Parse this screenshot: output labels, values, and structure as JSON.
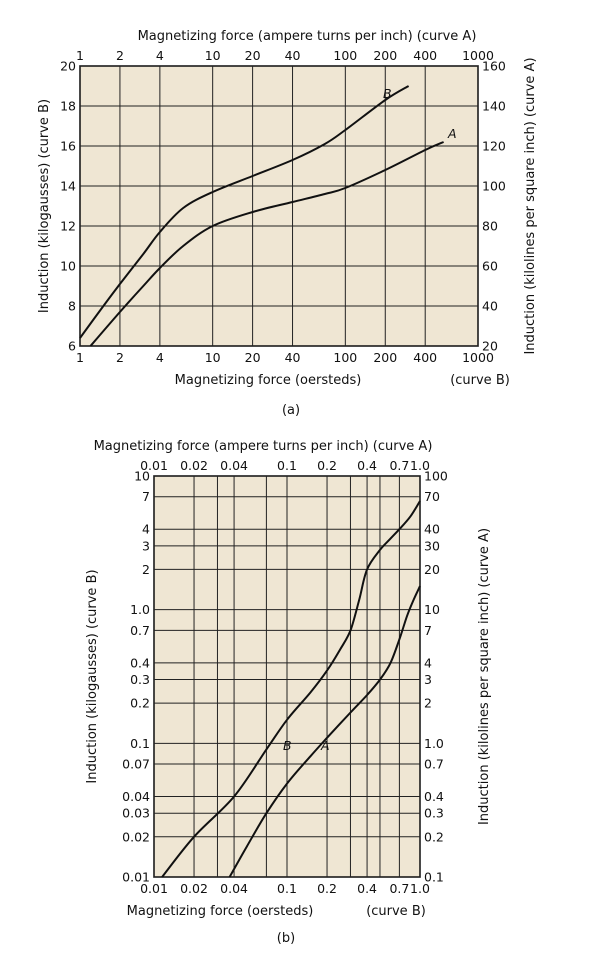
{
  "chart_data": [
    {
      "type": "line",
      "caption": "(a)",
      "x_scale": "log",
      "x_top_label": "Magnetizing force (ampere turns per inch)  (curve A)",
      "x_bottom_label": "Magnetizing force (oersteds)",
      "x_bottom_curve_tag": "(curve B)",
      "y_left_label": "Induction (kilogausses)  (curve B)",
      "y_right_label": "Induction (kilolines per square inch)  (curve A)",
      "xlim": [
        1,
        1000
      ],
      "ylim_left": [
        6,
        20
      ],
      "ylim_right": [
        20,
        160
      ],
      "x_ticks": [
        1,
        2,
        4,
        10,
        20,
        40,
        100,
        200,
        400,
        1000
      ],
      "x_tick_labels": [
        "1",
        "2",
        "4",
        "10",
        "20",
        "40",
        "100",
        "200",
        "400",
        "1000"
      ],
      "y_left_ticks": [
        6,
        8,
        10,
        12,
        14,
        16,
        18,
        20
      ],
      "y_left_tick_labels": [
        "6",
        "8",
        "10",
        "12",
        "14",
        "16",
        "18",
        "20"
      ],
      "y_right_ticks": [
        20,
        40,
        60,
        80,
        100,
        120,
        140,
        160
      ],
      "y_right_tick_labels": [
        "20",
        "40",
        "60",
        "80",
        "100",
        "120",
        "140",
        "160"
      ],
      "grid": true,
      "series": [
        {
          "name": "B",
          "axis": "left",
          "x": [
            1,
            1.5,
            2,
            3,
            4,
            6,
            10,
            20,
            40,
            70,
            100,
            200,
            300
          ],
          "y": [
            6.4,
            8.0,
            9.1,
            10.6,
            11.7,
            12.9,
            13.7,
            14.5,
            15.3,
            16.1,
            16.8,
            18.3,
            19.0
          ]
        },
        {
          "name": "A",
          "axis": "right",
          "x": [
            1.2,
            2,
            3,
            4,
            6,
            10,
            20,
            40,
            70,
            100,
            200,
            400,
            550
          ],
          "y": [
            20,
            37,
            50,
            59,
            70,
            80,
            87,
            92,
            96,
            99,
            108,
            118,
            122
          ]
        }
      ]
    },
    {
      "type": "line",
      "caption": "(b)",
      "x_scale": "log",
      "y_scale": "log",
      "x_top_label": "Magnetizing force (ampere turns per inch)  (curve A)",
      "x_bottom_label": "Magnetizing force (oersteds)",
      "x_bottom_curve_tag": "(curve B)",
      "y_left_label": "Induction (kilogausses) (curve B)",
      "y_right_label": "Induction (kilolines per square inch) (curve A)",
      "xlim": [
        0.01,
        1.0
      ],
      "ylim_left": [
        0.01,
        10
      ],
      "ylim_right": [
        0.1,
        100
      ],
      "x_ticks": [
        0.01,
        0.02,
        0.03,
        0.04,
        0.07,
        0.1,
        0.2,
        0.3,
        0.4,
        0.5,
        0.7,
        1.0
      ],
      "x_tick_labels": [
        "0.01",
        "0.02",
        "",
        "0.04",
        "",
        "0.1",
        "0.2",
        "",
        "0.4",
        "",
        "0.7",
        "1.0"
      ],
      "y_left_ticks": [
        0.01,
        0.02,
        0.03,
        0.04,
        0.07,
        0.1,
        0.2,
        0.3,
        0.4,
        0.7,
        1.0,
        2,
        3,
        4,
        7,
        10
      ],
      "y_left_tick_labels": [
        "0.01",
        "0.02",
        "0.03",
        "0.04",
        "0.07",
        "0.1",
        "0.2",
        "0.3",
        "0.4",
        "0.7",
        "1.0",
        "2",
        "3",
        "4",
        "7",
        "10"
      ],
      "y_right_ticks": [
        0.1,
        0.2,
        0.3,
        0.4,
        0.7,
        1.0,
        2,
        3,
        4,
        7,
        10,
        20,
        30,
        40,
        70,
        100
      ],
      "y_right_tick_labels": [
        "0.1",
        "0.2",
        "0.3",
        "0.4",
        "0.7",
        "1.0",
        "2",
        "3",
        "4",
        "7",
        "10",
        "20",
        "30",
        "40",
        "70",
        "100"
      ],
      "grid": true,
      "series": [
        {
          "name": "B",
          "axis": "left",
          "x": [
            0.0115,
            0.02,
            0.04,
            0.07,
            0.1,
            0.15,
            0.2,
            0.25,
            0.3,
            0.35,
            0.4,
            0.5,
            0.6,
            0.7,
            0.85,
            1.0
          ],
          "y": [
            0.01,
            0.02,
            0.04,
            0.09,
            0.15,
            0.24,
            0.35,
            0.5,
            0.7,
            1.2,
            2.0,
            2.8,
            3.4,
            4.0,
            5.0,
            6.5
          ]
        },
        {
          "name": "A",
          "axis": "right",
          "x": [
            0.037,
            0.05,
            0.07,
            0.1,
            0.15,
            0.2,
            0.3,
            0.4,
            0.5,
            0.6,
            0.7,
            0.8,
            0.9,
            1.0
          ],
          "y": [
            0.1,
            0.17,
            0.3,
            0.5,
            0.8,
            1.1,
            1.7,
            2.3,
            3.0,
            4.0,
            6.0,
            9.0,
            12.0,
            15.0
          ]
        }
      ]
    }
  ]
}
